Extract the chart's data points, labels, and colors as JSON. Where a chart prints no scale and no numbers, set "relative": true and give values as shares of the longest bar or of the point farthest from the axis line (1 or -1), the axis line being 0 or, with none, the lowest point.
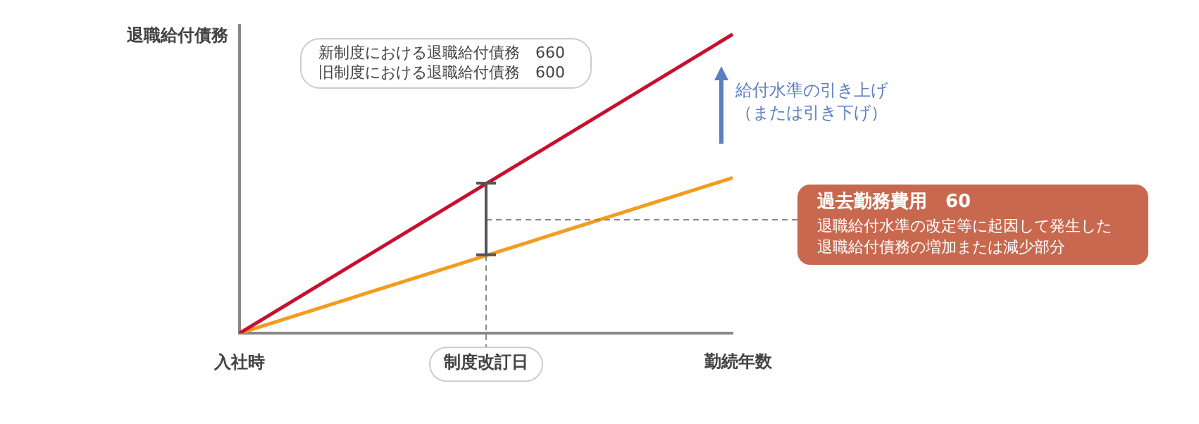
{
  "chart_data": {
    "type": "line",
    "relative": true,
    "categories": [
      "入社時",
      "制度改訂日",
      null
    ],
    "xlabel": "勤続年数",
    "ylabel": "退職給付債務",
    "series": [
      {
        "color": "#c8102e",
        "values": [
          0,
          0.5,
          1
        ]
      },
      {
        "color": "#f39c1f",
        "values": [
          0,
          0.26,
          0.52
        ]
      }
    ],
    "ref_lines": [
      {
        "axis": "x",
        "value": "制度改訂日",
        "color": "#888888",
        "line_style": "dashed"
      }
    ],
    "annotations": [
      "新制度における退職給付債務　660",
      "旧制度における退職給付債務　600",
      "給付水準の引き上げ",
      "（または引き下げ）",
      "過去勤務費用　60",
      "退職給付水準の改定等に起因して発生した",
      "退職給付債務の増加または減少部分"
    ],
    "grid": false,
    "legend": false,
    "marker": "none",
    "line_style": "solid"
  }
}
